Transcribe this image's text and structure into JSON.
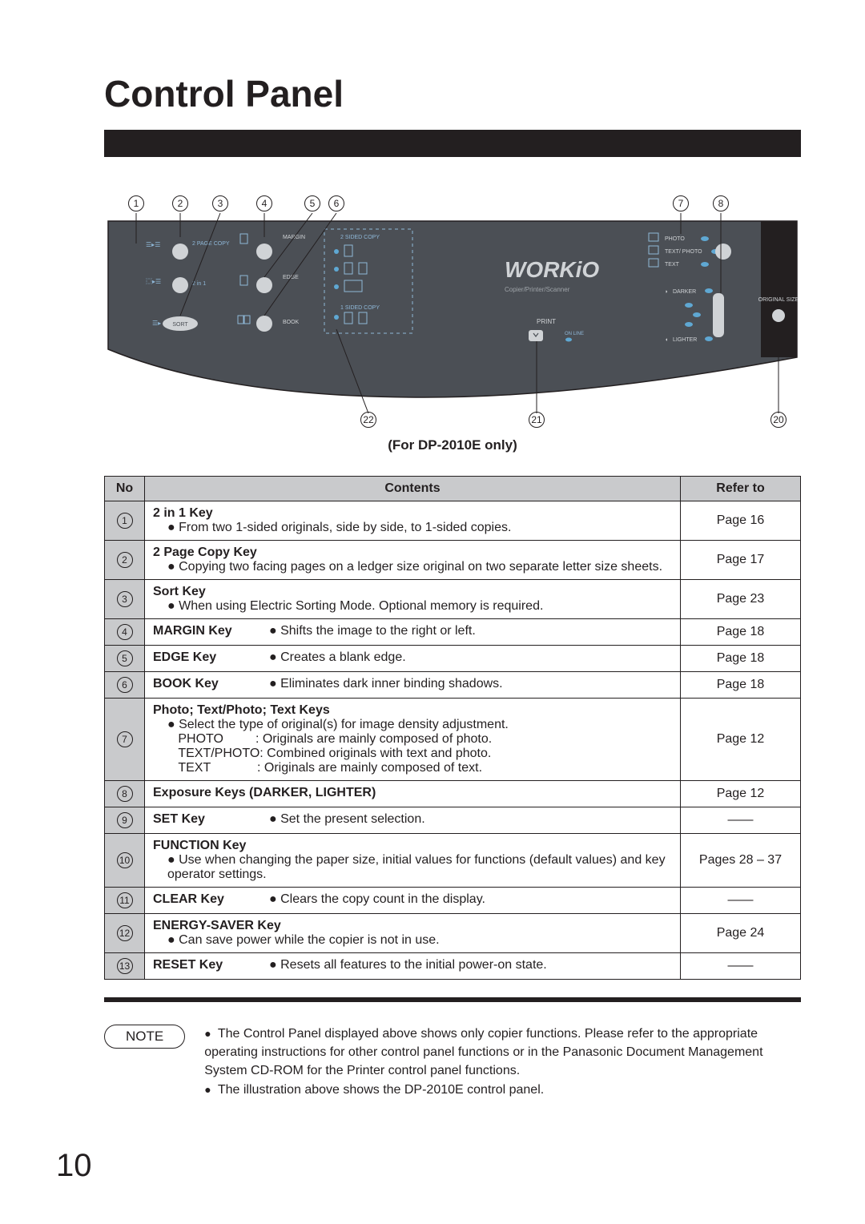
{
  "title": "Control Panel",
  "illustration_caption": "(For DP-2010E only)",
  "columns": {
    "no": "No",
    "contents": "Contents",
    "refer": "Refer to"
  },
  "rows": [
    {
      "num": "1",
      "key": "2 in 1 Key",
      "lines": [
        "● From two 1-sided originals, side by side, to 1-sided copies."
      ],
      "ref": "Page 16"
    },
    {
      "num": "2",
      "key": "2 Page Copy Key",
      "lines": [
        "● Copying two facing pages on a ledger size original on two separate letter size sheets."
      ],
      "ref": "Page 17"
    },
    {
      "num": "3",
      "key": "Sort Key",
      "lines": [
        "● When using Electric Sorting Mode. Optional memory is required."
      ],
      "ref": "Page 23"
    },
    {
      "num": "4",
      "inline": true,
      "key": "MARGIN Key",
      "desc": "● Shifts the image to the right or left.",
      "ref": "Page 18"
    },
    {
      "num": "5",
      "inline": true,
      "key": "EDGE Key",
      "desc": "● Creates a blank edge.",
      "ref": "Page 18"
    },
    {
      "num": "6",
      "inline": true,
      "key": "BOOK Key",
      "desc": "● Eliminates dark inner binding shadows.",
      "ref": "Page 18"
    },
    {
      "num": "7",
      "key": "Photo; Text/Photo; Text Keys",
      "lines": [
        "● Select the type of original(s) for image density adjustment.",
        "&nbsp;&nbsp;&nbsp;PHOTO&nbsp;&nbsp;&nbsp;&nbsp;&nbsp;&nbsp;&nbsp;&nbsp;&nbsp;: Originals are mainly composed of photo.",
        "&nbsp;&nbsp;&nbsp;TEXT/PHOTO: Combined originals with text and photo.",
        "&nbsp;&nbsp;&nbsp;TEXT&nbsp;&nbsp;&nbsp;&nbsp;&nbsp;&nbsp;&nbsp;&nbsp;&nbsp;&nbsp;&nbsp;&nbsp;&nbsp;: Originals are mainly composed of text."
      ],
      "ref": "Page 12"
    },
    {
      "num": "8",
      "inline": true,
      "key": "Exposure Keys (DARKER, LIGHTER)",
      "desc": "",
      "ref": "Page 12"
    },
    {
      "num": "9",
      "inline": true,
      "key": "SET Key",
      "desc": "● Set the present selection.",
      "ref": "——"
    },
    {
      "num": "10",
      "key": "FUNCTION Key",
      "lines": [
        "● Use when changing the paper size, initial values for functions (default values) and key operator settings."
      ],
      "ref": "Pages 28 – 37"
    },
    {
      "num": "11",
      "inline": true,
      "key": "CLEAR Key",
      "desc": "● Clears the copy count in the display.",
      "ref": "——"
    },
    {
      "num": "12",
      "key": "ENERGY-SAVER Key",
      "lines": [
        "● Can save power while the copier is not in use."
      ],
      "ref": "Page 24"
    },
    {
      "num": "13",
      "inline": true,
      "key": "RESET Key",
      "desc": "● Resets all features to the initial power-on state.",
      "ref": "——"
    }
  ],
  "note_label": "NOTE",
  "notes": [
    "The Control Panel displayed above shows only copier functions. Please refer to the appropriate operating instructions for other control panel functions or in the Panasonic Document Management System CD-ROM for the Printer control panel functions.",
    "The illustration above shows the DP-2010E control panel."
  ],
  "page_number": "10",
  "panel_labels": {
    "margin": "MARGIN",
    "edge": "EDGE",
    "book": "BOOK",
    "sort": "SORT",
    "two_in_one": "2 in 1",
    "two_page": "2 PAGE COPY",
    "two_sided": "2 SIDED COPY",
    "one_sided": "1 SIDED COPY",
    "photo": "PHOTO",
    "text_photo": "TEXT/ PHOTO",
    "text": "TEXT",
    "darker": "DARKER",
    "lighter": "LIGHTER",
    "orig_size": "ORIGINAL SIZE",
    "print": "PRINT",
    "online": "ON LINE",
    "brand": "WORKiO",
    "subtitle": "Copier/Printer/Scanner"
  },
  "callouts_top": [
    "1",
    "2",
    "3",
    "4",
    "5",
    "6",
    "7",
    "8"
  ],
  "callouts_bottom": [
    "22",
    "21",
    "20"
  ],
  "colors": {
    "panel_bg": "#4b4f55",
    "panel_dark": "#2f3338",
    "led_blue": "#5fa8d3",
    "text_light": "#d0d3d6",
    "header_gray": "#c9cacc",
    "black": "#231f20"
  }
}
